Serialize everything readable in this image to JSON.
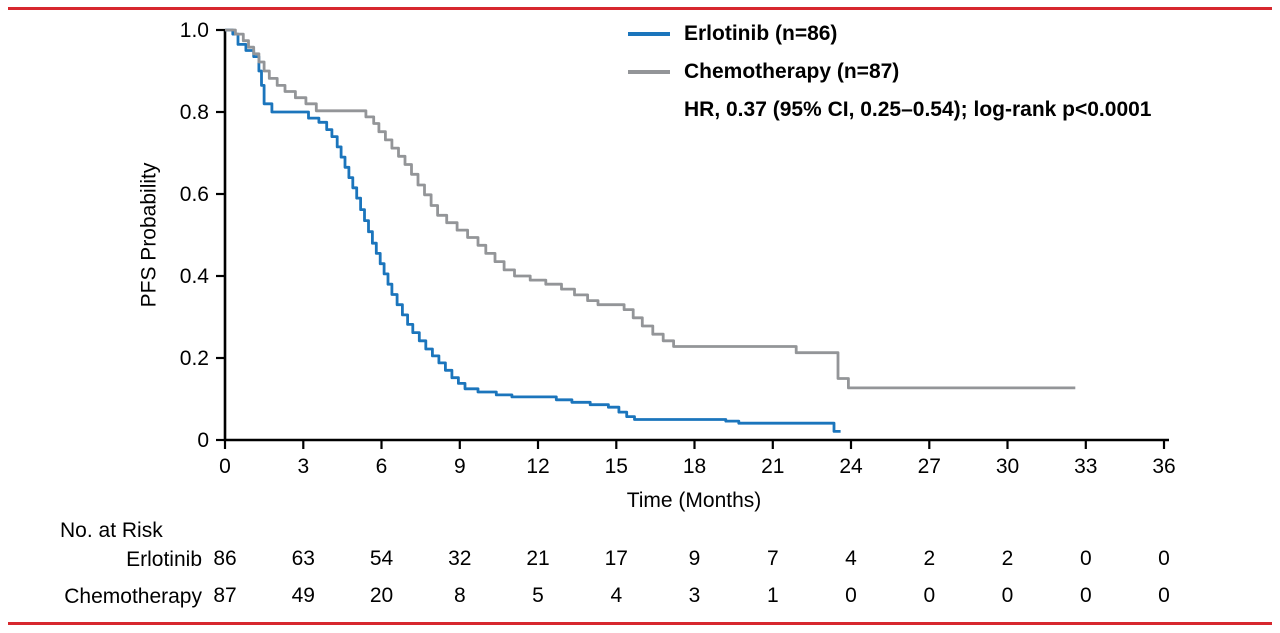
{
  "frame": {
    "border_color": "#d7282e"
  },
  "chart_data": {
    "type": "line",
    "subtype": "kaplan-meier-step",
    "title": "",
    "xlabel": "Time (Months)",
    "ylabel": "PFS Probability",
    "xlim": [
      0,
      36
    ],
    "ylim": [
      0,
      1.0
    ],
    "xticks": [
      0,
      3,
      6,
      9,
      12,
      15,
      18,
      21,
      24,
      27,
      30,
      33,
      36
    ],
    "yticks": [
      0,
      0.2,
      0.4,
      0.6,
      0.8,
      1.0
    ],
    "ytick_labels": [
      "0",
      "0.2",
      "0.4",
      "0.6",
      "0.8",
      "1.0"
    ],
    "grid": false,
    "legend_position": "top-right-inside",
    "legend": [
      {
        "label": "Erlotinib (n=86)",
        "color": "#1b75bc"
      },
      {
        "label": "Chemotherapy (n=87)",
        "color": "#939598"
      }
    ],
    "annotation": "HR, 0.37 (95% CI, 0.25–0.54); log-rank p<0.0001",
    "series": [
      {
        "name": "Erlotinib",
        "color": "#1b75bc",
        "end": 23.6,
        "points": [
          [
            0,
            1.0
          ],
          [
            0.3,
            0.99
          ],
          [
            0.5,
            0.965
          ],
          [
            0.8,
            0.95
          ],
          [
            1.1,
            0.935
          ],
          [
            1.3,
            0.9
          ],
          [
            1.4,
            0.865
          ],
          [
            1.5,
            0.82
          ],
          [
            1.8,
            0.8
          ],
          [
            3.2,
            0.785
          ],
          [
            3.6,
            0.775
          ],
          [
            3.9,
            0.757
          ],
          [
            4.1,
            0.74
          ],
          [
            4.3,
            0.715
          ],
          [
            4.45,
            0.69
          ],
          [
            4.6,
            0.665
          ],
          [
            4.75,
            0.64
          ],
          [
            4.9,
            0.615
          ],
          [
            5.05,
            0.59
          ],
          [
            5.2,
            0.562
          ],
          [
            5.35,
            0.535
          ],
          [
            5.5,
            0.508
          ],
          [
            5.65,
            0.48
          ],
          [
            5.8,
            0.455
          ],
          [
            5.95,
            0.43
          ],
          [
            6.1,
            0.405
          ],
          [
            6.25,
            0.38
          ],
          [
            6.4,
            0.355
          ],
          [
            6.6,
            0.33
          ],
          [
            6.8,
            0.305
          ],
          [
            7.0,
            0.282
          ],
          [
            7.2,
            0.262
          ],
          [
            7.45,
            0.242
          ],
          [
            7.7,
            0.222
          ],
          [
            7.95,
            0.205
          ],
          [
            8.2,
            0.188
          ],
          [
            8.45,
            0.17
          ],
          [
            8.7,
            0.152
          ],
          [
            8.95,
            0.138
          ],
          [
            9.2,
            0.125
          ],
          [
            9.7,
            0.117
          ],
          [
            10.4,
            0.11
          ],
          [
            11.0,
            0.105
          ],
          [
            12.7,
            0.098
          ],
          [
            13.3,
            0.092
          ],
          [
            14.0,
            0.086
          ],
          [
            14.7,
            0.08
          ],
          [
            15.1,
            0.068
          ],
          [
            15.4,
            0.057
          ],
          [
            15.7,
            0.05
          ],
          [
            19.2,
            0.046
          ],
          [
            19.7,
            0.041
          ],
          [
            23.2,
            0.041
          ],
          [
            23.35,
            0.021
          ]
        ]
      },
      {
        "name": "Chemotherapy",
        "color": "#939598",
        "end": 32.6,
        "points": [
          [
            0,
            1.0
          ],
          [
            0.4,
            0.99
          ],
          [
            0.7,
            0.974
          ],
          [
            0.9,
            0.958
          ],
          [
            1.1,
            0.942
          ],
          [
            1.3,
            0.922
          ],
          [
            1.5,
            0.9
          ],
          [
            1.7,
            0.882
          ],
          [
            2.0,
            0.865
          ],
          [
            2.3,
            0.85
          ],
          [
            2.7,
            0.835
          ],
          [
            3.1,
            0.82
          ],
          [
            3.5,
            0.803
          ],
          [
            5.4,
            0.788
          ],
          [
            5.7,
            0.772
          ],
          [
            5.9,
            0.752
          ],
          [
            6.15,
            0.732
          ],
          [
            6.4,
            0.712
          ],
          [
            6.65,
            0.692
          ],
          [
            6.9,
            0.672
          ],
          [
            7.15,
            0.648
          ],
          [
            7.4,
            0.622
          ],
          [
            7.65,
            0.598
          ],
          [
            7.9,
            0.572
          ],
          [
            8.15,
            0.548
          ],
          [
            8.5,
            0.53
          ],
          [
            8.9,
            0.512
          ],
          [
            9.3,
            0.494
          ],
          [
            9.7,
            0.475
          ],
          [
            10.0,
            0.455
          ],
          [
            10.35,
            0.435
          ],
          [
            10.7,
            0.415
          ],
          [
            11.1,
            0.4
          ],
          [
            11.7,
            0.39
          ],
          [
            12.3,
            0.38
          ],
          [
            12.9,
            0.368
          ],
          [
            13.4,
            0.354
          ],
          [
            13.9,
            0.34
          ],
          [
            14.3,
            0.33
          ],
          [
            15.3,
            0.318
          ],
          [
            15.65,
            0.298
          ],
          [
            16.0,
            0.278
          ],
          [
            16.4,
            0.258
          ],
          [
            16.8,
            0.242
          ],
          [
            17.2,
            0.228
          ],
          [
            21.9,
            0.213
          ],
          [
            23.5,
            0.15
          ],
          [
            23.9,
            0.127
          ]
        ]
      }
    ],
    "risk_table": {
      "title": "No. at Risk",
      "rows": [
        {
          "label": "Erlotinib",
          "values": [
            86,
            63,
            54,
            32,
            21,
            17,
            9,
            7,
            4,
            2,
            2,
            0,
            0
          ]
        },
        {
          "label": "Chemotherapy",
          "values": [
            87,
            49,
            20,
            8,
            5,
            4,
            3,
            1,
            0,
            0,
            0,
            0,
            0
          ]
        }
      ]
    }
  }
}
